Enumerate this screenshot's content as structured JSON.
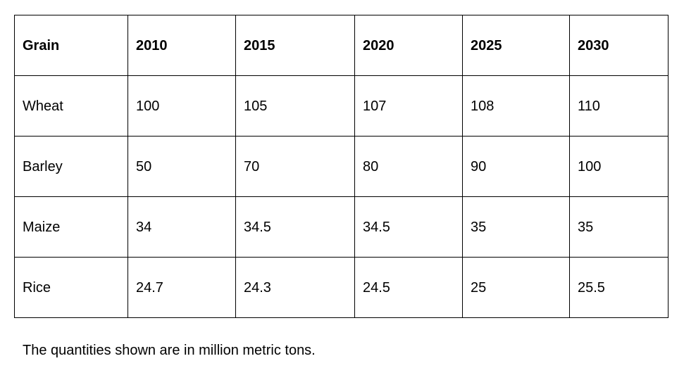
{
  "table": {
    "headers": [
      "Grain",
      "2010",
      "2015",
      "2020",
      "2025",
      "2030"
    ],
    "rows": [
      [
        "Wheat",
        "100",
        "105",
        "107",
        "108",
        "110"
      ],
      [
        "Barley",
        "50",
        "70",
        "80",
        "90",
        "100"
      ],
      [
        "Maize",
        "34",
        "34.5",
        "34.5",
        "35",
        "35"
      ],
      [
        "Rice",
        "24.7",
        "24.3",
        "24.5",
        "25",
        "25.5"
      ]
    ]
  },
  "note": "The quantities shown are in million metric tons."
}
